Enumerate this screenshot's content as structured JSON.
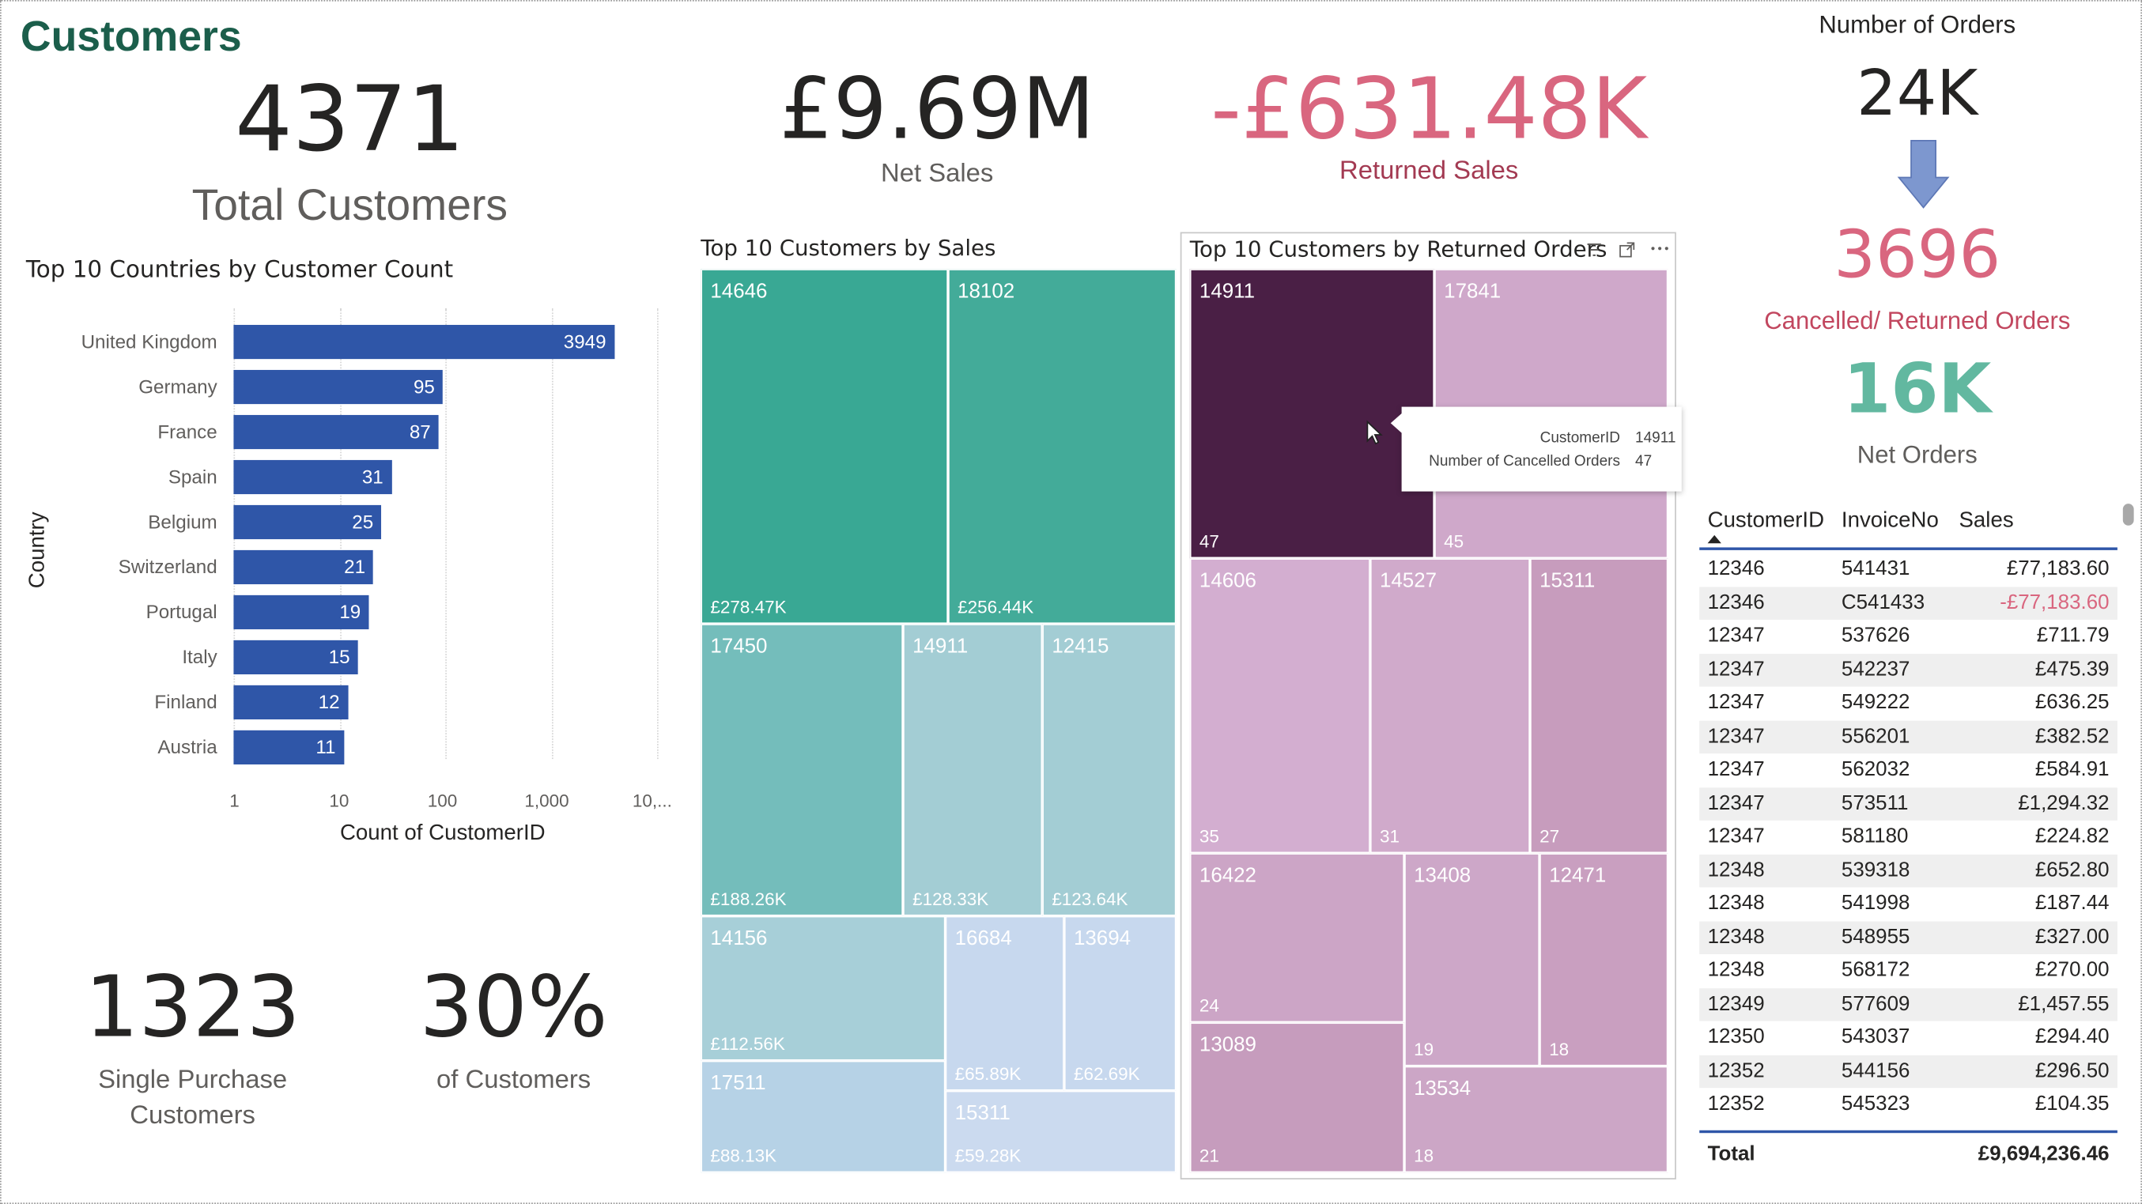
{
  "page_title": "Customers",
  "kpis": {
    "total_customers": {
      "value": "4371",
      "label": "Total Customers"
    },
    "net_sales": {
      "value": "£9.69M",
      "label": "Net Sales"
    },
    "returned_sales": {
      "value": "-£631.48K",
      "label": "Returned Sales"
    },
    "number_of_orders": {
      "label": "Number of Orders",
      "value": "24K"
    },
    "cancelled_orders": {
      "value": "3696",
      "label": "Cancelled/ Returned Orders"
    },
    "net_orders": {
      "value": "16K",
      "label": "Net Orders"
    },
    "single_purchase": {
      "value": "1323",
      "label_line1": "Single Purchase",
      "label_line2": "Customers"
    },
    "pct_customers": {
      "value": "30%",
      "label": "of Customers"
    }
  },
  "colors": {
    "title": "#1b5e4b",
    "bar": "#2f56a8",
    "negative": "#d9667f",
    "positive_kpi": "#62b8a0",
    "arrow": "#7d97cf"
  },
  "bar_chart": {
    "title": "Top 10 Countries by Customer Count",
    "ylabel": "Country",
    "xlabel": "Count of CustomerID",
    "ticks": [
      "1",
      "10",
      "100",
      "1,000",
      "10,..."
    ]
  },
  "chart_data": {
    "type": "bar",
    "orientation": "horizontal",
    "scale": "log",
    "title": "Top 10 Countries by Customer Count",
    "xlabel": "Count of CustomerID",
    "ylabel": "Country",
    "categories": [
      "United Kingdom",
      "Germany",
      "France",
      "Spain",
      "Belgium",
      "Switzerland",
      "Portugal",
      "Italy",
      "Finland",
      "Austria"
    ],
    "values": [
      3949,
      95,
      87,
      31,
      25,
      21,
      19,
      15,
      12,
      11
    ],
    "xlim": [
      1,
      10000
    ],
    "grid": true
  },
  "treemap_sales": {
    "title": "Top 10 Customers by Sales",
    "tiles": [
      {
        "id": "14646",
        "value": "£278.47K",
        "color": "#39a894"
      },
      {
        "id": "18102",
        "value": "£256.44K",
        "color": "#43ab99"
      },
      {
        "id": "17450",
        "value": "£188.26K",
        "color": "#74bdbb"
      },
      {
        "id": "14911",
        "value": "£128.33K",
        "color": "#a3cdd4"
      },
      {
        "id": "12415",
        "value": "£123.64K",
        "color": "#a3cdd4"
      },
      {
        "id": "14156",
        "value": "£112.56K",
        "color": "#a7cfd8"
      },
      {
        "id": "16684",
        "value": "£65.89K",
        "color": "#c7d8ee"
      },
      {
        "id": "13694",
        "value": "£62.69K",
        "color": "#c7d8ee"
      },
      {
        "id": "17511",
        "value": "£88.13K",
        "color": "#b6d2e6"
      },
      {
        "id": "15311",
        "value": "£59.28K",
        "color": "#cbdaef"
      }
    ]
  },
  "treemap_returns": {
    "title": "Top 10 Customers by Returned Orders",
    "tiles": [
      {
        "id": "14911",
        "value": "47",
        "color": "#4a1f45"
      },
      {
        "id": "17841",
        "value": "45",
        "color": "#cfa8ca"
      },
      {
        "id": "14606",
        "value": "35",
        "color": "#d3aed0"
      },
      {
        "id": "14527",
        "value": "31",
        "color": "#d0aacb"
      },
      {
        "id": "15311",
        "value": "27",
        "color": "#c79cbd"
      },
      {
        "id": "16422",
        "value": "24",
        "color": "#cca5c6"
      },
      {
        "id": "13408",
        "value": "19",
        "color": "#cda7c8"
      },
      {
        "id": "12471",
        "value": "18",
        "color": "#c99fc0"
      },
      {
        "id": "13089",
        "value": "21",
        "color": "#c69cbd"
      },
      {
        "id": "13534",
        "value": "18",
        "color": "#cca6c6"
      }
    ],
    "tooltip": {
      "k1": "CustomerID",
      "v1": "14911",
      "k2": "Number of Cancelled Orders",
      "v2": "47"
    }
  },
  "table": {
    "headers": [
      "CustomerID",
      "InvoiceNo",
      "Sales"
    ],
    "rows": [
      [
        "12346",
        "541431",
        "£77,183.60"
      ],
      [
        "12346",
        "C541433",
        "-£77,183.60"
      ],
      [
        "12347",
        "537626",
        "£711.79"
      ],
      [
        "12347",
        "542237",
        "£475.39"
      ],
      [
        "12347",
        "549222",
        "£636.25"
      ],
      [
        "12347",
        "556201",
        "£382.52"
      ],
      [
        "12347",
        "562032",
        "£584.91"
      ],
      [
        "12347",
        "573511",
        "£1,294.32"
      ],
      [
        "12347",
        "581180",
        "£224.82"
      ],
      [
        "12348",
        "539318",
        "£652.80"
      ],
      [
        "12348",
        "541998",
        "£187.44"
      ],
      [
        "12348",
        "548955",
        "£327.00"
      ],
      [
        "12348",
        "568172",
        "£270.00"
      ],
      [
        "12349",
        "577609",
        "£1,457.55"
      ],
      [
        "12350",
        "543037",
        "£294.40"
      ],
      [
        "12352",
        "544156",
        "£296.50"
      ],
      [
        "12352",
        "545323",
        "£104.35"
      ]
    ],
    "total_label": "Total",
    "total_value": "£9,694,236.46"
  }
}
